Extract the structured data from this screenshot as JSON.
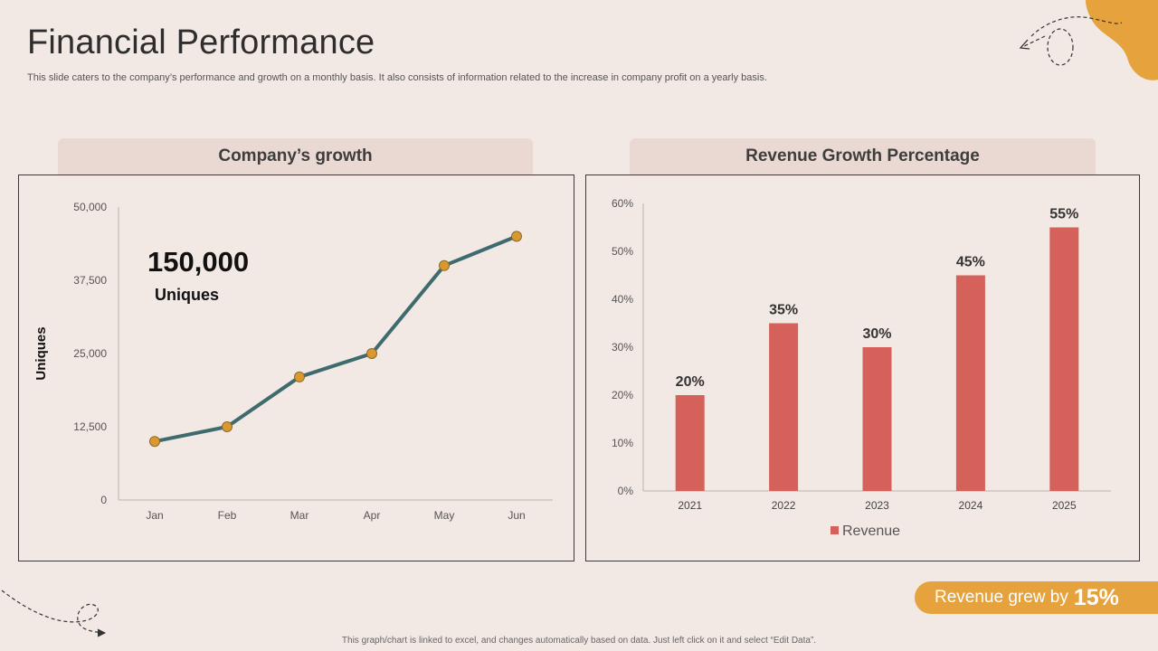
{
  "page": {
    "title": "Financial Performance",
    "subtitle": "This slide caters to the company’s performance and growth on a monthly basis. It also consists of information related to the increase in company profit on a yearly  basis.",
    "footnote": "This graph/chart is linked to excel, and changes automatically based on data. Just left click on it and select “Edit Data”."
  },
  "colors": {
    "background": "#f2e8e4",
    "header_fill": "#ead9d2",
    "line": "#3d6b6e",
    "marker": "#d9992f",
    "bar": "#d4625a",
    "accent": "#e6a23c"
  },
  "left_panel": {
    "header": "Company’s growth",
    "highlight_value": "150,000",
    "highlight_label": "Uniques"
  },
  "right_panel": {
    "header": "Revenue Growth Percentage"
  },
  "badge": {
    "text": "Revenue grew by",
    "value": "15%"
  },
  "chart_data": [
    {
      "type": "line",
      "title": "Company’s growth",
      "xlabel": "",
      "ylabel": "Uniques",
      "categories": [
        "Jan",
        "Feb",
        "Mar",
        "Apr",
        "May",
        "Jun"
      ],
      "values": [
        10000,
        12500,
        21000,
        25000,
        40000,
        45000
      ],
      "ylim": [
        0,
        50000
      ],
      "yticks": [
        0,
        12500,
        25000,
        37500,
        50000
      ],
      "ytick_labels": [
        "0",
        "12,500",
        "25,000",
        "37,500",
        "50,000"
      ],
      "grid": false,
      "legend": "none"
    },
    {
      "type": "bar",
      "title": "Revenue Growth Percentage",
      "xlabel": "",
      "ylabel": "",
      "categories": [
        "2021",
        "2022",
        "2023",
        "2024",
        "2025"
      ],
      "series": [
        {
          "name": "Revenue",
          "values": [
            20,
            35,
            30,
            45,
            55
          ]
        }
      ],
      "data_labels": [
        "20%",
        "35%",
        "30%",
        "45%",
        "55%"
      ],
      "ylim": [
        0,
        60
      ],
      "yticks": [
        0,
        10,
        20,
        30,
        40,
        50,
        60
      ],
      "ytick_labels": [
        "0%",
        "10%",
        "20%",
        "30%",
        "40%",
        "50%",
        "60%"
      ],
      "grid": false,
      "legend": "bottom"
    }
  ]
}
